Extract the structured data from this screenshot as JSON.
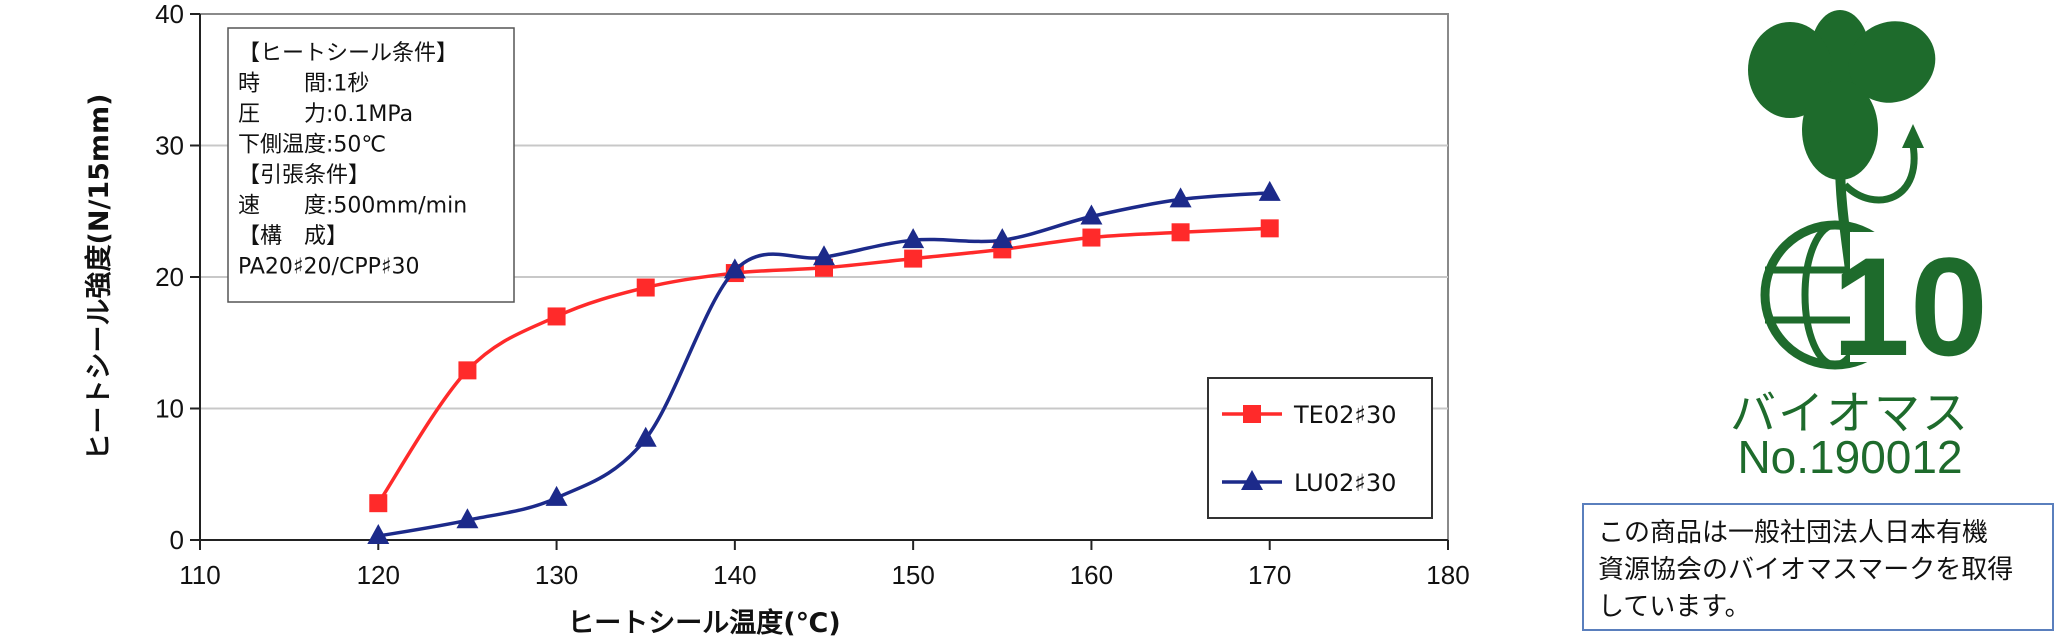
{
  "chart_data": {
    "type": "line",
    "xlabel": "ヒートシール温度(℃)",
    "ylabel": "ヒートシール強度(N/15mm)",
    "xlim": [
      110,
      180
    ],
    "ylim": [
      0,
      40
    ],
    "xticks": [
      110,
      120,
      130,
      140,
      150,
      160,
      170,
      180
    ],
    "yticks": [
      0,
      10,
      20,
      30,
      40
    ],
    "grid": "horizontal",
    "legend_position": "bottom-right",
    "series": [
      {
        "name": "TE02♯30",
        "color": "#ff2a2a",
        "marker": "square",
        "x": [
          120,
          125,
          130,
          135,
          140,
          145,
          150,
          155,
          160,
          165,
          170
        ],
        "y": [
          2.8,
          12.9,
          17.0,
          19.2,
          20.3,
          20.7,
          21.4,
          22.1,
          23.0,
          23.4,
          23.7
        ]
      },
      {
        "name": "LU02♯30",
        "color": "#1c2a8a",
        "marker": "triangle",
        "x": [
          120,
          125,
          130,
          135,
          140,
          145,
          150,
          155,
          160,
          165,
          170
        ],
        "y": [
          0.3,
          1.5,
          3.2,
          7.7,
          20.5,
          21.5,
          22.8,
          22.8,
          24.6,
          25.9,
          26.4
        ]
      }
    ],
    "conditions": [
      "【ヒートシール条件】",
      "時　　間:1秒",
      "圧　　力:0.1MPa",
      "下側温度:50℃",
      "【引張条件】",
      "速　　度:500mm/min",
      "【構　成】",
      "PA20♯20/CPP♯30"
    ]
  },
  "logo": {
    "name": "バイオマス",
    "number": "No.190012",
    "emblem_digits": "10",
    "color": "#1e6b2c"
  },
  "notice": {
    "lines": [
      "この商品は一般社団法人日本有機",
      "資源協会のバイオマスマークを取得",
      "しています。"
    ]
  }
}
